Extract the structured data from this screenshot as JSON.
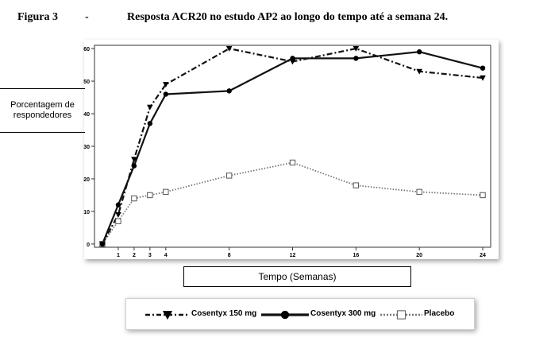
{
  "header": {
    "figure_label": "Figura 3",
    "dash": "-",
    "title": "Resposta ACR20 no estudo AP2 ao longo do tempo até a semana 24."
  },
  "chart_data": {
    "type": "line",
    "title": "Resposta ACR20 no estudo AP2 ao longo do tempo até a semana 24.",
    "xlabel": "Tempo (Semanas)",
    "ylabel": "Porcentagem de respondedores",
    "x": [
      0,
      1,
      2,
      3,
      4,
      8,
      12,
      16,
      20,
      24
    ],
    "x_ticks": [
      1,
      2,
      3,
      4,
      8,
      12,
      16,
      20,
      24
    ],
    "y_ticks": [
      0,
      10,
      20,
      30,
      40,
      50,
      60
    ],
    "xlim": [
      -0.5,
      24.5
    ],
    "ylim": [
      -1,
      61
    ],
    "grid": false,
    "legend_position": "bottom",
    "series": [
      {
        "name": "Cosentyx 150 mg",
        "values": [
          0,
          9,
          26,
          42,
          49,
          60,
          56,
          60,
          53,
          51
        ],
        "color": "#000000",
        "line_style": "dash-dot",
        "marker": "triangle-down"
      },
      {
        "name": "Cosentyx 300 mg",
        "values": [
          0,
          12,
          24,
          37,
          46,
          47,
          57,
          57,
          59,
          54
        ],
        "color": "#000000",
        "line_style": "solid",
        "marker": "circle"
      },
      {
        "name": "Placebo",
        "values": [
          0,
          7,
          14,
          15,
          16,
          21,
          25,
          18,
          16,
          15
        ],
        "color": "#808080",
        "line_style": "dotted",
        "marker": "square-open"
      }
    ]
  }
}
